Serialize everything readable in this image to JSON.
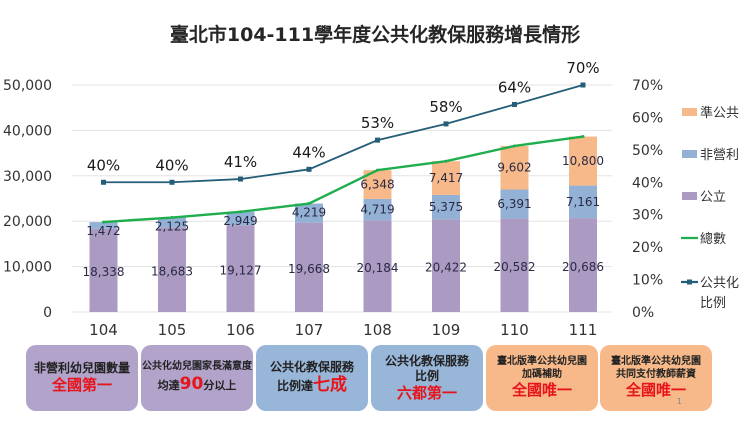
{
  "chart_data": {
    "type": "bar",
    "title": "臺北市104-111學年度公共化教保服務增長情形",
    "categories": [
      "104",
      "105",
      "106",
      "107",
      "108",
      "109",
      "110",
      "111"
    ],
    "stacked": true,
    "left_axis": {
      "ylim": [
        0,
        50000
      ],
      "ticks": [
        "0",
        "10,000",
        "20,000",
        "30,000",
        "40,000",
        "50,000"
      ]
    },
    "right_axis": {
      "ylim": [
        0,
        70
      ],
      "ticks": [
        "0%",
        "10%",
        "20%",
        "30%",
        "40%",
        "50%",
        "60%",
        "70%"
      ]
    },
    "grid": true,
    "legend_position": "right",
    "series": [
      {
        "name": "公立",
        "kind": "bar",
        "color": "#ab9ac2",
        "values": [
          18338,
          18683,
          19127,
          19668,
          20184,
          20422,
          20582,
          20686
        ],
        "labels": [
          "18,338",
          "18,683",
          "19,127",
          "19,668",
          "20,184",
          "20,422",
          "20,582",
          "20,686"
        ]
      },
      {
        "name": "非營利",
        "kind": "bar",
        "color": "#93b1d5",
        "values": [
          1472,
          2125,
          2949,
          4219,
          4719,
          5375,
          6391,
          7161
        ],
        "labels": [
          "1,472",
          "2,125",
          "2,949",
          "4,219",
          "4,719",
          "5,375",
          "6,391",
          "7,161"
        ]
      },
      {
        "name": "準公共",
        "kind": "bar",
        "color": "#f7b98a",
        "values": [
          0,
          0,
          0,
          0,
          6348,
          7417,
          9602,
          10800
        ],
        "labels": [
          "",
          "",
          "",
          "",
          "6,348",
          "7,417",
          "9,602",
          "10,800"
        ]
      },
      {
        "name": "總數",
        "kind": "line",
        "axis": "left",
        "color": "#1fae4e",
        "values": [
          19810,
          20808,
          22076,
          23887,
          31251,
          33214,
          36575,
          38647
        ]
      },
      {
        "name": "公共化比例",
        "kind": "line",
        "axis": "right",
        "color": "#255e78",
        "values": [
          40,
          40,
          41,
          44,
          53,
          58,
          64,
          70
        ],
        "labels": [
          "40%",
          "40%",
          "41%",
          "44%",
          "53%",
          "58%",
          "64%",
          "70%"
        ]
      }
    ],
    "legend": [
      "準公共",
      "非營利",
      "公立",
      "總數",
      "公共化比例"
    ]
  },
  "highlights": [
    {
      "style": "purple",
      "line1": "非營利幼兒園數量",
      "emphasis": "全國第一"
    },
    {
      "style": "purple",
      "line1": "公共化幼兒園家長滿意度",
      "inline_pre": "均達",
      "inline_hl": "90",
      "inline_post": "分以上"
    },
    {
      "style": "blue",
      "line1": "公共化教保服務",
      "inline_pre": "比例達",
      "inline_hl": "七成",
      "inline_post": ""
    },
    {
      "style": "blue",
      "line1": "公共化教保服務",
      "line2": "比例",
      "emphasis": "六都第一"
    },
    {
      "style": "orange",
      "line1": "臺北版準公共幼兒園",
      "line2": "加碼補助",
      "emphasis": "全國唯一"
    },
    {
      "style": "orange",
      "line1": "臺北版準公共幼兒園",
      "line2": "共同支付教師薪資",
      "emphasis": "全國唯一"
    }
  ],
  "page_number": "1"
}
